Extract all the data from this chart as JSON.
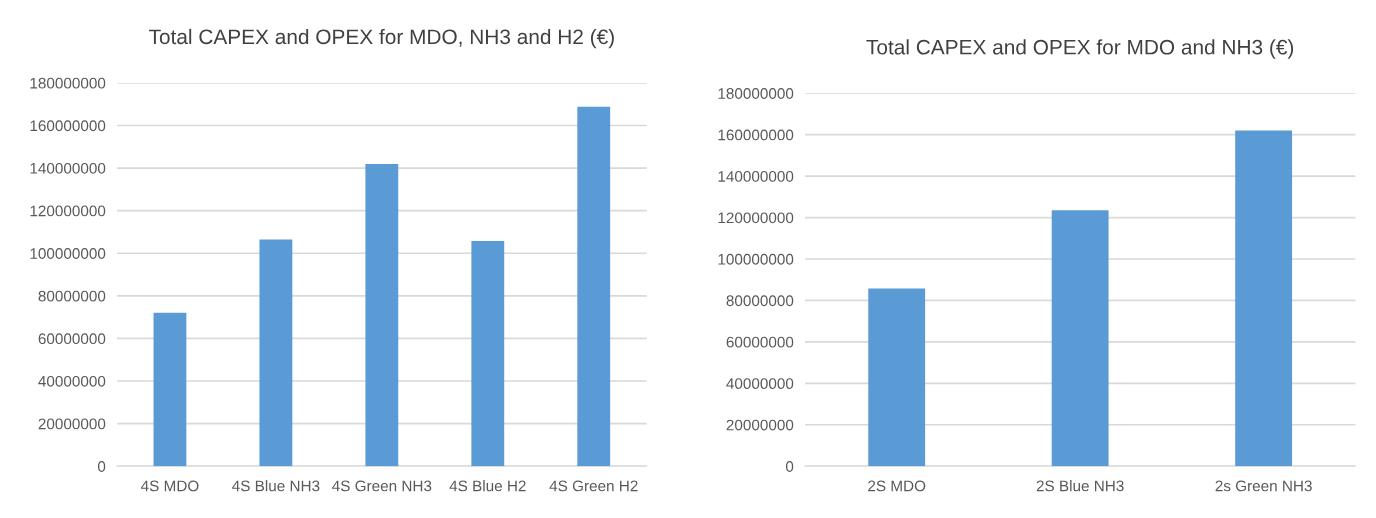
{
  "chart_data": [
    {
      "type": "bar",
      "title": "Total CAPEX and OPEX for MDO, NH3 and H2 (€)",
      "categories": [
        "4S MDO",
        "4S Blue NH3",
        "4S Green NH3",
        "4S Blue H2",
        "4S Green H2"
      ],
      "values": [
        72000000,
        106400000,
        141900000,
        105800000,
        168800000
      ],
      "color": "#5b9bd5",
      "ylim": [
        0,
        180000000
      ],
      "yticks": [
        0,
        20000000,
        40000000,
        60000000,
        80000000,
        100000000,
        120000000,
        140000000,
        160000000,
        180000000
      ],
      "grid": "y",
      "legend": false
    },
    {
      "type": "bar",
      "title": "Total CAPEX and OPEX for MDO and NH3 (€)",
      "categories": [
        "2S MDO",
        "2S Blue NH3",
        "2s Green NH3"
      ],
      "values": [
        85800000,
        123500000,
        162000000
      ],
      "color": "#5b9bd5",
      "ylim": [
        0,
        180000000
      ],
      "yticks": [
        0,
        20000000,
        40000000,
        60000000,
        80000000,
        100000000,
        120000000,
        140000000,
        160000000,
        180000000
      ],
      "grid": "y",
      "legend": false
    }
  ]
}
